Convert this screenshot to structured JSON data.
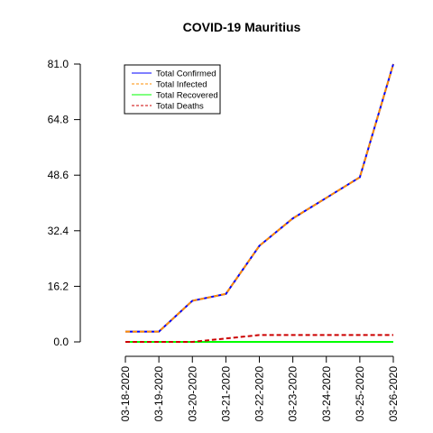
{
  "chart_data": {
    "type": "line",
    "title": "COVID-19 Mauritius",
    "xlabel": "",
    "ylabel": "",
    "categories": [
      "03-18-2020",
      "03-19-2020",
      "03-20-2020",
      "03-21-2020",
      "03-22-2020",
      "03-23-2020",
      "03-24-2020",
      "03-25-2020",
      "03-26-2020"
    ],
    "yticks": [
      "0.0",
      "16.2",
      "32.4",
      "48.6",
      "64.8",
      "81.0"
    ],
    "ylim": [
      0,
      81
    ],
    "grid": false,
    "legend_position": "top-left",
    "series": [
      {
        "name": "Total Confirmed",
        "color": "#0000ff",
        "dash": "solid",
        "values": [
          3,
          3,
          12,
          14,
          28,
          36,
          42,
          48,
          81
        ]
      },
      {
        "name": "Total Infected",
        "color": "#ff8c00",
        "dash": "dashed",
        "values": [
          3,
          3,
          12,
          14,
          28,
          36,
          42,
          48,
          81
        ]
      },
      {
        "name": "Total Recovered",
        "color": "#00ff00",
        "dash": "solid",
        "values": [
          0,
          0,
          0,
          0,
          0,
          0,
          0,
          0,
          0
        ]
      },
      {
        "name": "Total Deaths",
        "color": "#cc0000",
        "dash": "dashed",
        "values": [
          0,
          0,
          0,
          1,
          2,
          2,
          2,
          2,
          2
        ]
      }
    ]
  }
}
